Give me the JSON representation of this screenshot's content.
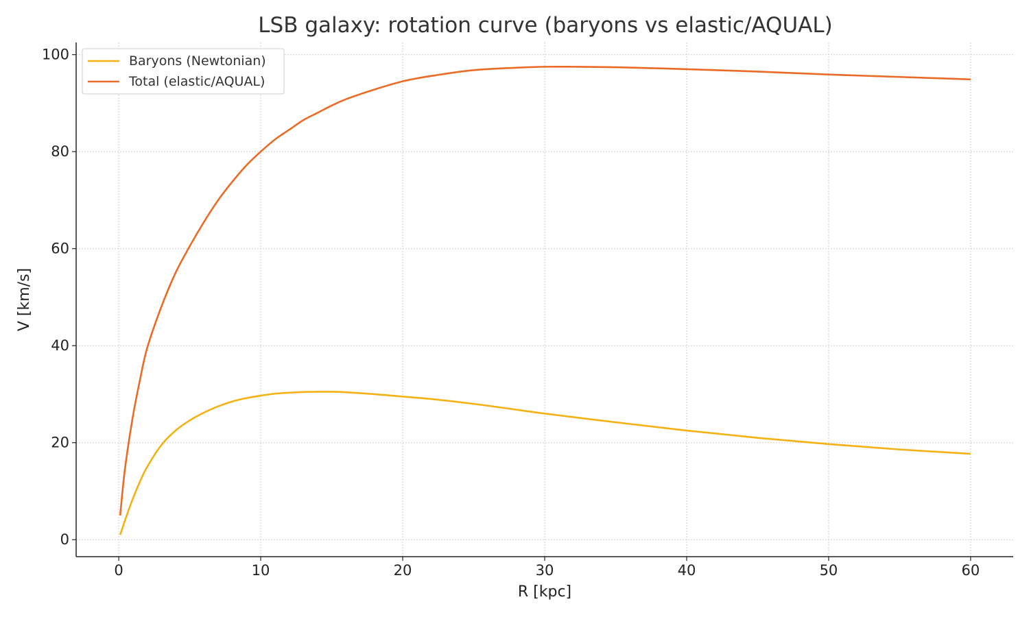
{
  "chart_data": {
    "type": "line",
    "title": "LSB galaxy: rotation curve (baryons vs elastic/AQUAL)",
    "xlabel": "R [kpc]",
    "ylabel": "V [km/s]",
    "xlim": [
      -3,
      63
    ],
    "ylim": [
      -3.5,
      102.5
    ],
    "xticks": [
      0,
      10,
      20,
      30,
      40,
      50,
      60
    ],
    "yticks": [
      0,
      20,
      40,
      60,
      80,
      100
    ],
    "grid": true,
    "legend_position": "top-left",
    "series": [
      {
        "name": "Baryons (Newtonian)",
        "color": "#f5b111",
        "x": [
          0.1,
          0.5,
          1,
          1.5,
          2,
          3,
          4,
          5,
          6,
          7,
          8,
          9,
          10,
          11,
          12,
          13,
          14,
          15,
          16,
          18,
          20,
          22,
          25,
          28,
          30,
          35,
          40,
          45,
          50,
          55,
          60
        ],
        "y": [
          1,
          4.5,
          8.5,
          12,
          15,
          19.5,
          22.5,
          24.6,
          26.2,
          27.5,
          28.5,
          29.2,
          29.7,
          30.1,
          30.3,
          30.45,
          30.5,
          30.5,
          30.4,
          30.0,
          29.5,
          29.0,
          28.0,
          26.8,
          26.0,
          24.2,
          22.5,
          21.0,
          19.7,
          18.6,
          17.7
        ]
      },
      {
        "name": "Total (elastic/AQUAL)",
        "color": "#ea6a26",
        "x": [
          0.1,
          0.3,
          0.5,
          1,
          1.5,
          2,
          3,
          4,
          5,
          6,
          7,
          8,
          9,
          10,
          11,
          12,
          13,
          14,
          15,
          16,
          18,
          20,
          22,
          25,
          28,
          30,
          32,
          35,
          40,
          45,
          50,
          55,
          60
        ],
        "y": [
          5,
          11,
          16,
          25.5,
          33,
          39.5,
          48,
          55,
          60.5,
          65.5,
          70,
          73.8,
          77.2,
          80,
          82.5,
          84.5,
          86.5,
          88,
          89.5,
          90.8,
          92.8,
          94.5,
          95.6,
          96.8,
          97.3,
          97.5,
          97.5,
          97.4,
          97.0,
          96.5,
          95.9,
          95.4,
          94.9
        ]
      }
    ]
  }
}
